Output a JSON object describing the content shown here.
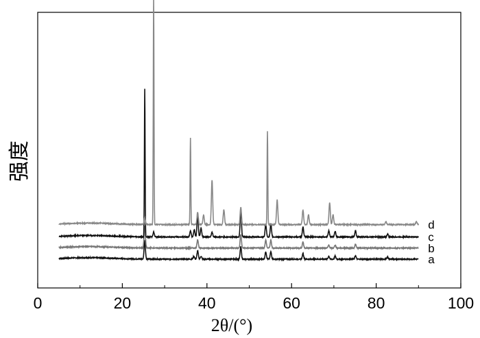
{
  "chart_data": {
    "type": "line",
    "title": "",
    "xlabel": "2θ/(°)",
    "ylabel": "强度",
    "xlim": [
      0,
      100
    ],
    "x_ticks": [
      0,
      20,
      40,
      60,
      80,
      100
    ],
    "x_minor_ticks": [
      10,
      30,
      50,
      70,
      90
    ],
    "y_ticks_shown": false,
    "grid": false,
    "legend": "none",
    "series": [
      {
        "name": "a",
        "color": "#111111",
        "offset": 0.0,
        "x_start": 5,
        "x_end": 90,
        "peaks": [
          [
            25.3,
            0.075
          ],
          [
            36.9,
            0.012
          ],
          [
            37.8,
            0.034
          ],
          [
            38.6,
            0.012
          ],
          [
            48.0,
            0.05
          ],
          [
            53.9,
            0.03
          ],
          [
            55.1,
            0.03
          ],
          [
            62.7,
            0.022
          ],
          [
            68.8,
            0.012
          ],
          [
            70.3,
            0.012
          ],
          [
            75.1,
            0.014
          ],
          [
            82.7,
            0.008
          ]
        ]
      },
      {
        "name": "b",
        "color": "#777777",
        "offset": 0.045,
        "x_start": 5,
        "x_end": 90,
        "peaks": [
          [
            25.3,
            0.09
          ],
          [
            37.8,
            0.035
          ],
          [
            48.0,
            0.055
          ],
          [
            53.9,
            0.032
          ],
          [
            55.1,
            0.032
          ],
          [
            62.7,
            0.024
          ],
          [
            68.8,
            0.012
          ],
          [
            70.3,
            0.012
          ],
          [
            75.1,
            0.015
          ]
        ]
      },
      {
        "name": "c",
        "color": "#111111",
        "offset": 0.09,
        "x_start": 5,
        "x_end": 90,
        "peaks": [
          [
            25.3,
            0.6
          ],
          [
            27.4,
            0.02
          ],
          [
            36.1,
            0.025
          ],
          [
            37.0,
            0.03
          ],
          [
            37.8,
            0.09
          ],
          [
            38.6,
            0.035
          ],
          [
            41.2,
            0.02
          ],
          [
            48.0,
            0.11
          ],
          [
            53.9,
            0.05
          ],
          [
            55.1,
            0.05
          ],
          [
            62.7,
            0.04
          ],
          [
            68.8,
            0.025
          ],
          [
            70.3,
            0.022
          ],
          [
            75.1,
            0.025
          ],
          [
            82.7,
            0.012
          ]
        ]
      },
      {
        "name": "d",
        "color": "#888888",
        "offset": 0.14,
        "x_start": 5,
        "x_end": 90,
        "peaks": [
          [
            25.3,
            0.03
          ],
          [
            27.4,
            0.93
          ],
          [
            36.1,
            0.35
          ],
          [
            37.8,
            0.05
          ],
          [
            39.2,
            0.04
          ],
          [
            41.2,
            0.18
          ],
          [
            44.0,
            0.06
          ],
          [
            48.0,
            0.07
          ],
          [
            54.3,
            0.38
          ],
          [
            56.6,
            0.1
          ],
          [
            62.7,
            0.06
          ],
          [
            64.0,
            0.04
          ],
          [
            69.0,
            0.09
          ],
          [
            69.8,
            0.04
          ],
          [
            82.3,
            0.012
          ],
          [
            89.5,
            0.012
          ]
        ]
      }
    ]
  }
}
